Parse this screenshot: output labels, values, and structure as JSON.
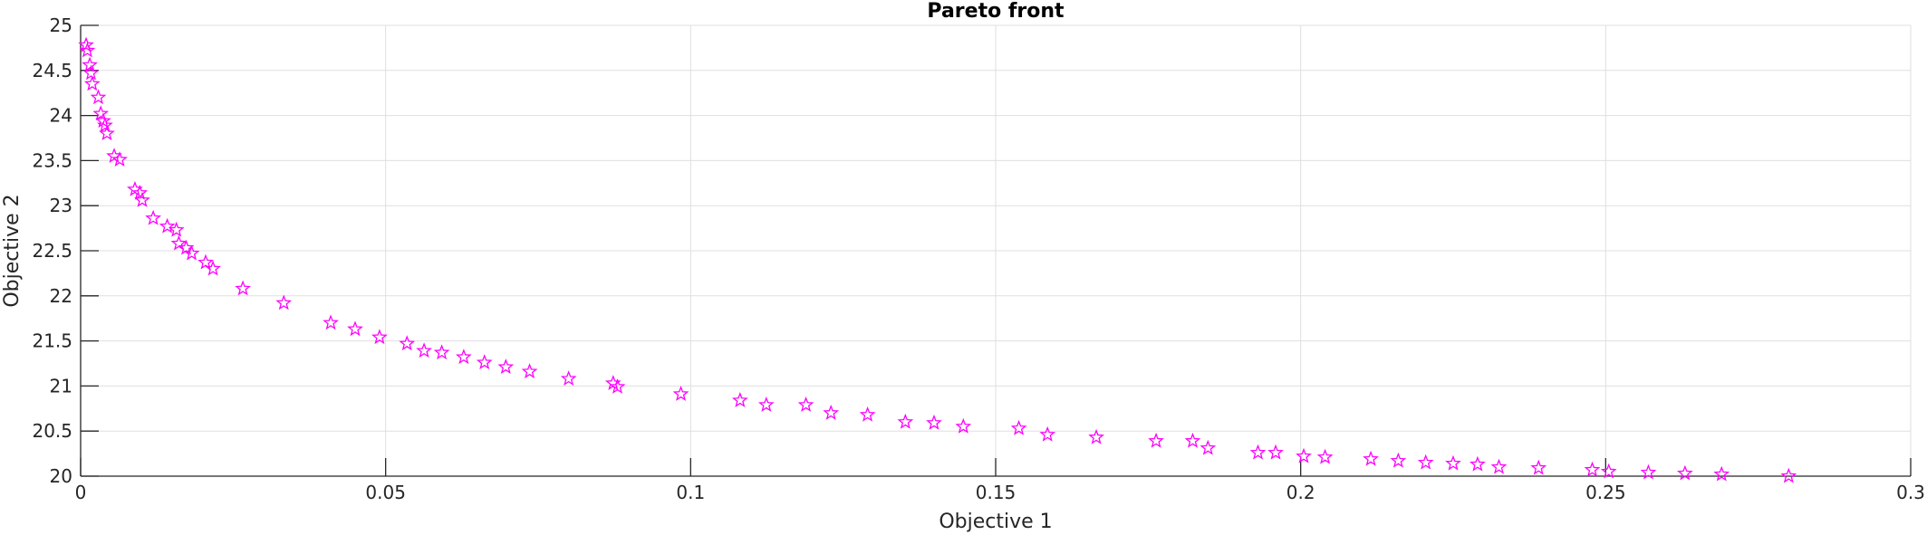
{
  "chart_data": {
    "type": "scatter",
    "title": "Pareto front",
    "xlabel": "Objective 1",
    "ylabel": "Objective 2",
    "xlim": [
      0,
      0.3
    ],
    "ylim": [
      20,
      25
    ],
    "xticks": [
      0,
      0.05,
      0.1,
      0.15,
      0.2,
      0.25,
      0.3
    ],
    "xtick_labels": [
      "0",
      "0.05",
      "0.1",
      "0.15",
      "0.2",
      "0.25",
      "0.3"
    ],
    "yticks": [
      20,
      20.5,
      21,
      21.5,
      22,
      22.5,
      23,
      23.5,
      24,
      24.5,
      25
    ],
    "ytick_labels": [
      "20",
      "20.5",
      "21",
      "21.5",
      "22",
      "22.5",
      "23",
      "23.5",
      "24",
      "24.5",
      "25"
    ],
    "grid": true,
    "marker": "pentagram",
    "marker_color": "#ff00ff",
    "series": [
      {
        "x": [
          0.0009,
          0.0011,
          0.0015,
          0.0017,
          0.0019,
          0.0029,
          0.0033,
          0.0037,
          0.004,
          0.0043,
          0.0055,
          0.0064,
          0.0089,
          0.0097,
          0.0101,
          0.0119,
          0.0142,
          0.0157,
          0.0161,
          0.0173,
          0.0182,
          0.0205,
          0.0217,
          0.0266,
          0.0333,
          0.041,
          0.045,
          0.049,
          0.0535,
          0.0563,
          0.0592,
          0.0628,
          0.0662,
          0.0697,
          0.0736,
          0.08,
          0.0873,
          0.088,
          0.0984,
          0.1081,
          0.1124,
          0.1189,
          0.123,
          0.129,
          0.1352,
          0.1399,
          0.1447,
          0.1538,
          0.1585,
          0.1665,
          0.1763,
          0.1823,
          0.1848,
          0.193,
          0.1959,
          0.2005,
          0.204,
          0.2115,
          0.216,
          0.2205,
          0.225,
          0.229,
          0.2325,
          0.239,
          0.2478,
          0.2505,
          0.257,
          0.263,
          0.269,
          0.28
        ],
        "y": [
          24.78,
          24.72,
          24.56,
          24.47,
          24.35,
          24.2,
          24.02,
          23.94,
          23.89,
          23.8,
          23.55,
          23.51,
          23.18,
          23.14,
          23.06,
          22.86,
          22.77,
          22.73,
          22.58,
          22.53,
          22.47,
          22.37,
          22.3,
          22.08,
          21.92,
          21.7,
          21.63,
          21.54,
          21.47,
          21.39,
          21.37,
          21.32,
          21.26,
          21.21,
          21.16,
          21.08,
          21.03,
          20.99,
          20.91,
          20.84,
          20.79,
          20.79,
          20.7,
          20.68,
          20.6,
          20.59,
          20.55,
          20.53,
          20.46,
          20.43,
          20.39,
          20.39,
          20.31,
          20.26,
          20.26,
          20.22,
          20.21,
          20.19,
          20.17,
          20.15,
          20.14,
          20.13,
          20.1,
          20.09,
          20.07,
          20.05,
          20.04,
          20.03,
          20.02,
          20.0
        ]
      }
    ]
  }
}
